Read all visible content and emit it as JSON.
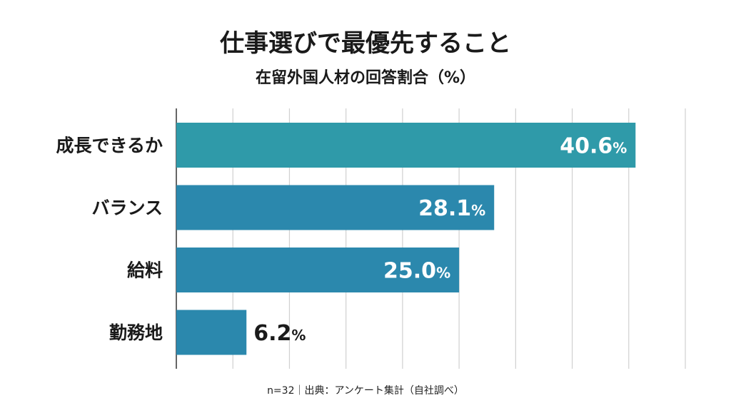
{
  "chart_data": {
    "type": "bar",
    "orientation": "horizontal",
    "title": "仕事選びで最優先すること",
    "subtitle": "在留外国人材の回答割合（%）",
    "categories": [
      "成長できるか",
      "バランス",
      "給料",
      "勤務地"
    ],
    "values": [
      40.6,
      28.1,
      25.0,
      6.2
    ],
    "value_labels": [
      "40.6",
      "28.1",
      "25.0",
      "6.2"
    ],
    "unit": "%",
    "xlim": [
      0,
      45
    ],
    "grid": true,
    "grid_step": 5,
    "colors": [
      "#2f9aa9",
      "#2b88ad",
      "#2b88ad",
      "#2b88ad"
    ],
    "footnote": "n=32｜出典：アンケート集計（自社調べ）"
  }
}
